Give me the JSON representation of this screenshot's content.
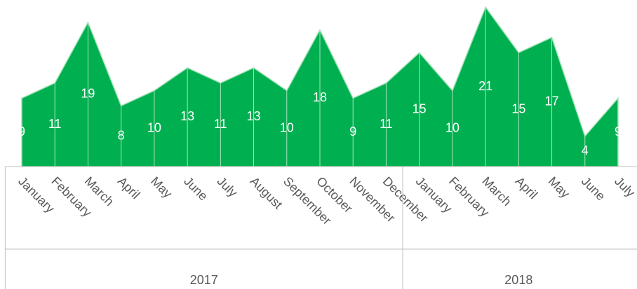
{
  "chart_data": {
    "type": "area",
    "color": "#00b050",
    "groups": [
      {
        "label": "2017",
        "categories": [
          "January",
          "February",
          "March",
          "April",
          "May",
          "June",
          "July",
          "August",
          "September",
          "October",
          "November",
          "December"
        ]
      },
      {
        "label": "2018",
        "categories": [
          "January",
          "February",
          "March",
          "April",
          "May",
          "June",
          "July"
        ]
      }
    ],
    "values": [
      9,
      11,
      19,
      8,
      10,
      13,
      11,
      13,
      10,
      18,
      9,
      11,
      15,
      10,
      21,
      15,
      17,
      4,
      9
    ]
  }
}
